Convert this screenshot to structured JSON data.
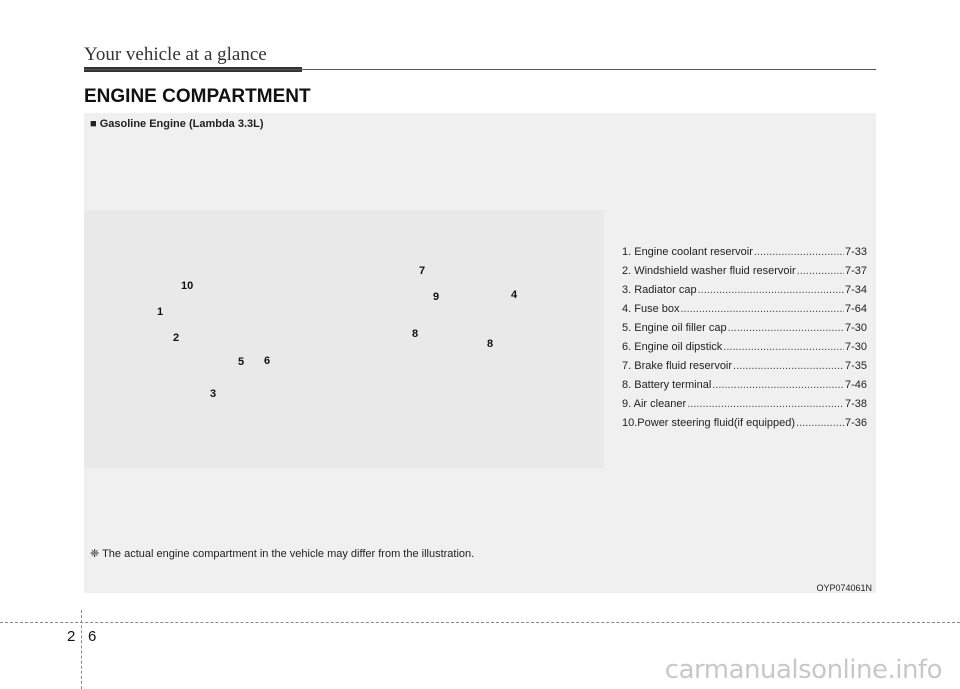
{
  "header": {
    "title": "Your vehicle at a glance"
  },
  "section_title": "ENGINE COMPARTMENT",
  "panel": {
    "subtitle": "■ Gasoline Engine (Lambda 3.3L)",
    "callouts": [
      "10",
      "1",
      "2",
      "5",
      "6",
      "3",
      "7",
      "9",
      "4",
      "8",
      "8"
    ],
    "legend": [
      {
        "label": "1. Engine coolant reservoir",
        "page": "7-33"
      },
      {
        "label": "2. Windshield washer fluid reservoir",
        "page": "7-37"
      },
      {
        "label": "3. Radiator cap",
        "page": "7-34"
      },
      {
        "label": "4. Fuse box",
        "page": "7-64"
      },
      {
        "label": "5. Engine oil filler cap",
        "page": "7-30"
      },
      {
        "label": "6. Engine oil dipstick",
        "page": "7-30"
      },
      {
        "label": "7. Brake fluid reservoir",
        "page": "7-35"
      },
      {
        "label": "8. Battery terminal",
        "page": "7-46"
      },
      {
        "label": "9. Air cleaner",
        "page": "7-38"
      },
      {
        "label": "10.Power steering fluid(if equipped)",
        "page": "7-36"
      }
    ],
    "note": "❈ The actual engine compartment in the vehicle may differ from the illustration.",
    "figure_code": "OYP074061N"
  },
  "footer": {
    "chapter": "2",
    "page": "6"
  },
  "watermark": "carmanualsonline.info"
}
